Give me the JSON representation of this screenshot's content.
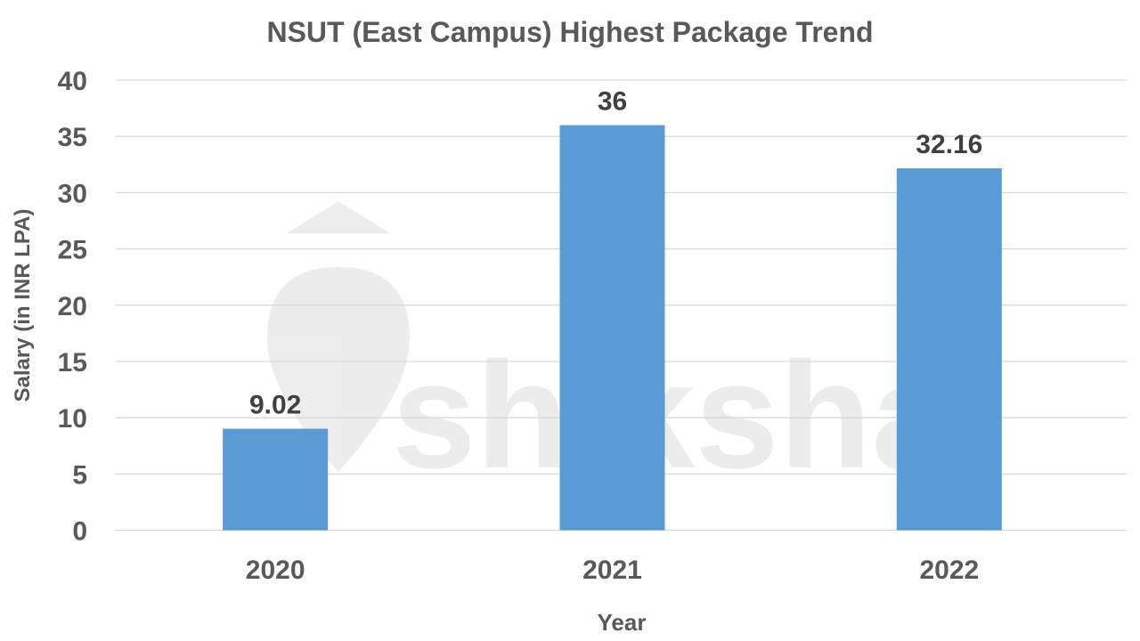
{
  "chart_data": {
    "type": "bar",
    "title": "NSUT (East Campus) Highest Package Trend",
    "xlabel": "Year",
    "ylabel": "Salary (in INR LPA)",
    "categories": [
      "2020",
      "2021",
      "2022"
    ],
    "values": [
      9.02,
      36,
      32.16
    ],
    "data_labels": [
      "9.02",
      "36",
      "32.16"
    ],
    "ylim": [
      0,
      40
    ],
    "yticks": [
      0,
      5,
      10,
      15,
      20,
      25,
      30,
      35,
      40
    ],
    "ytick_labels": [
      "0",
      "5",
      "10",
      "15",
      "20",
      "25",
      "30",
      "35",
      "40"
    ],
    "grid": true,
    "legend": "none",
    "colors": {
      "bar": "#5B9BD5",
      "text": "#595959",
      "label": "#404040",
      "grid": "#D9D9D9"
    }
  },
  "watermark": "shiksha"
}
